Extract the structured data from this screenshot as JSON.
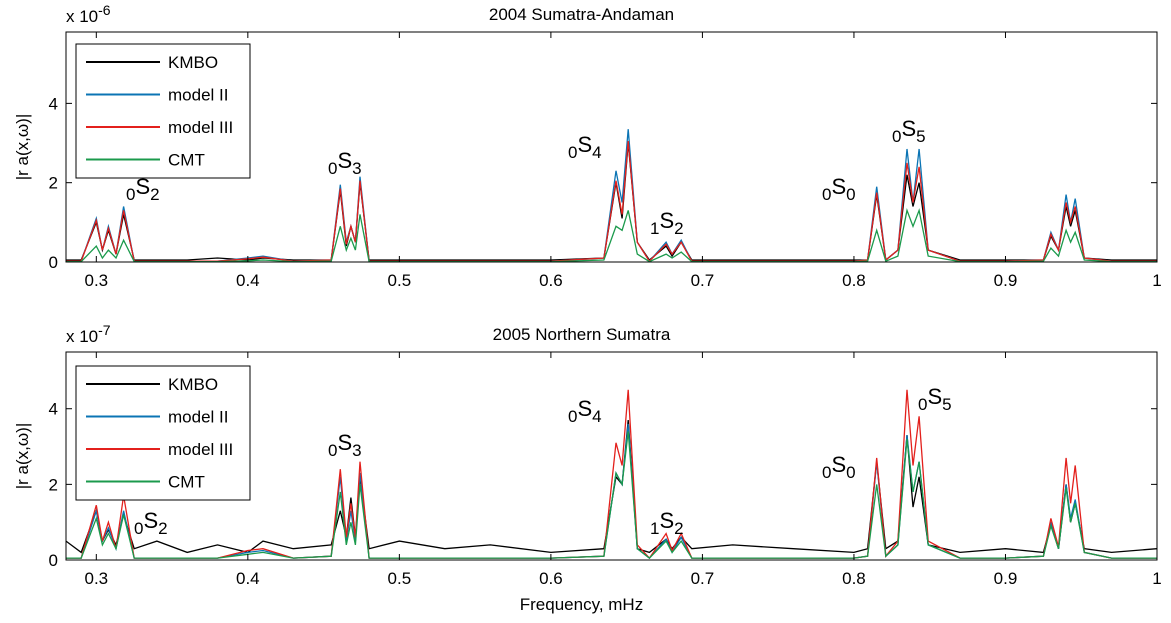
{
  "charts": [
    {
      "type": "line",
      "title": "2004 Sumatra-Andaman",
      "ylabel": "|r   a(x,ω)|",
      "scale_base": "x 10",
      "scale_exponent": "-6",
      "xlim": [
        0.28,
        1
      ],
      "xticks": [
        0.3,
        0.4,
        0.5,
        0.6,
        0.7,
        0.8,
        0.9,
        1
      ],
      "ylim": [
        0,
        5.8
      ],
      "yticks": [
        0,
        2,
        4
      ],
      "x": [
        0.28,
        0.29,
        0.3,
        0.304,
        0.308,
        0.313,
        0.318,
        0.325,
        0.34,
        0.36,
        0.38,
        0.4,
        0.41,
        0.43,
        0.455,
        0.461,
        0.465,
        0.468,
        0.471,
        0.474,
        0.48,
        0.5,
        0.53,
        0.56,
        0.6,
        0.635,
        0.643,
        0.647,
        0.651,
        0.657,
        0.665,
        0.676,
        0.68,
        0.686,
        0.693,
        0.72,
        0.76,
        0.8,
        0.809,
        0.815,
        0.821,
        0.829,
        0.835,
        0.839,
        0.843,
        0.849,
        0.87,
        0.9,
        0.925,
        0.93,
        0.935,
        0.94,
        0.943,
        0.946,
        0.952,
        0.97,
        1.0
      ],
      "series": [
        {
          "name": "KMBO",
          "color": "#000000",
          "values": [
            0.05,
            0.05,
            1.0,
            0.3,
            0.8,
            0.2,
            1.2,
            0.05,
            0.05,
            0.05,
            0.1,
            0.05,
            0.1,
            0.05,
            0.05,
            1.8,
            0.4,
            0.9,
            0.5,
            2.0,
            0.05,
            0.05,
            0.05,
            0.05,
            0.05,
            0.1,
            2.0,
            1.1,
            3.0,
            0.5,
            0.05,
            0.4,
            0.15,
            0.5,
            0.05,
            0.05,
            0.05,
            0.05,
            0.05,
            1.7,
            0.05,
            0.3,
            2.2,
            1.4,
            2.0,
            0.3,
            0.05,
            0.05,
            0.05,
            0.65,
            0.3,
            1.4,
            0.9,
            1.3,
            0.1,
            0.05,
            0.05
          ]
        },
        {
          "name": "model II",
          "color": "#0b74b4",
          "values": [
            0.02,
            0.02,
            1.1,
            0.3,
            0.9,
            0.2,
            1.4,
            0.02,
            0.02,
            0.02,
            0.02,
            0.1,
            0.15,
            0.02,
            0.05,
            1.95,
            0.5,
            0.9,
            0.5,
            2.15,
            0.02,
            0.02,
            0.02,
            0.02,
            0.02,
            0.1,
            2.3,
            1.5,
            3.35,
            0.5,
            0.02,
            0.5,
            0.2,
            0.55,
            0.02,
            0.02,
            0.02,
            0.02,
            0.05,
            1.9,
            0.05,
            0.3,
            2.85,
            1.5,
            2.85,
            0.3,
            0.02,
            0.02,
            0.05,
            0.75,
            0.3,
            1.7,
            1.0,
            1.6,
            0.1,
            0.02,
            0.02
          ]
        },
        {
          "name": "model III",
          "color": "#e3201c",
          "values": [
            0.02,
            0.02,
            1.05,
            0.3,
            0.85,
            0.2,
            1.3,
            0.02,
            0.02,
            0.02,
            0.02,
            0.08,
            0.12,
            0.02,
            0.05,
            1.85,
            0.45,
            0.9,
            0.5,
            2.05,
            0.02,
            0.02,
            0.02,
            0.02,
            0.02,
            0.1,
            2.05,
            1.2,
            3.05,
            0.5,
            0.02,
            0.45,
            0.2,
            0.5,
            0.02,
            0.02,
            0.02,
            0.02,
            0.05,
            1.75,
            0.05,
            0.3,
            2.5,
            1.5,
            2.4,
            0.3,
            0.02,
            0.02,
            0.05,
            0.7,
            0.3,
            1.5,
            1.0,
            1.4,
            0.1,
            0.02,
            0.02
          ]
        },
        {
          "name": "CMT",
          "color": "#1b9a4c",
          "values": [
            0.01,
            0.01,
            0.4,
            0.1,
            0.3,
            0.1,
            0.55,
            0.01,
            0.01,
            0.01,
            0.01,
            0.03,
            0.05,
            0.01,
            0.02,
            0.9,
            0.3,
            0.6,
            0.3,
            1.2,
            0.01,
            0.01,
            0.01,
            0.01,
            0.01,
            0.05,
            0.9,
            0.8,
            1.3,
            0.2,
            0.01,
            0.2,
            0.1,
            0.25,
            0.01,
            0.01,
            0.01,
            0.01,
            0.02,
            0.8,
            0.02,
            0.15,
            1.3,
            0.9,
            1.3,
            0.15,
            0.01,
            0.01,
            0.02,
            0.35,
            0.15,
            0.8,
            0.5,
            0.75,
            0.05,
            0.01,
            0.01
          ]
        }
      ],
      "annotations": [
        {
          "pre": "0",
          "base": "S",
          "sub": "2"
        },
        {
          "pre": "0",
          "base": "S",
          "sub": "3"
        },
        {
          "pre": "0",
          "base": "S",
          "sub": "4"
        },
        {
          "pre": "1",
          "base": "S",
          "sub": "2"
        },
        {
          "pre": "0",
          "base": "S",
          "sub": "0"
        },
        {
          "pre": "0",
          "base": "S",
          "sub": "5"
        }
      ]
    },
    {
      "type": "line",
      "title": "2005 Northern Sumatra",
      "ylabel": "|r   a(x,ω)|",
      "xlabel": "Frequency, mHz",
      "scale_base": "x 10",
      "scale_exponent": "-7",
      "xlim": [
        0.28,
        1
      ],
      "xticks": [
        0.3,
        0.4,
        0.5,
        0.6,
        0.7,
        0.8,
        0.9,
        1
      ],
      "ylim": [
        0,
        5.5
      ],
      "yticks": [
        0,
        2,
        4
      ],
      "x": [
        0.28,
        0.29,
        0.3,
        0.304,
        0.308,
        0.313,
        0.318,
        0.325,
        0.34,
        0.36,
        0.38,
        0.4,
        0.41,
        0.43,
        0.455,
        0.461,
        0.465,
        0.468,
        0.471,
        0.474,
        0.48,
        0.5,
        0.53,
        0.56,
        0.6,
        0.635,
        0.643,
        0.647,
        0.651,
        0.657,
        0.665,
        0.676,
        0.68,
        0.686,
        0.693,
        0.72,
        0.76,
        0.8,
        0.809,
        0.815,
        0.821,
        0.829,
        0.835,
        0.839,
        0.843,
        0.849,
        0.87,
        0.9,
        0.925,
        0.93,
        0.935,
        0.94,
        0.943,
        0.946,
        0.952,
        0.97,
        1.0
      ],
      "series": [
        {
          "name": "KMBO",
          "color": "#000000",
          "values": [
            0.5,
            0.2,
            1.3,
            0.5,
            0.8,
            0.4,
            1.2,
            0.3,
            0.5,
            0.2,
            0.4,
            0.2,
            0.5,
            0.3,
            0.4,
            1.3,
            0.6,
            1.65,
            0.6,
            2.2,
            0.3,
            0.5,
            0.3,
            0.4,
            0.2,
            0.3,
            2.2,
            2.0,
            3.7,
            0.3,
            0.2,
            0.55,
            0.3,
            0.6,
            0.3,
            0.4,
            0.3,
            0.2,
            0.3,
            2.6,
            0.3,
            0.5,
            3.3,
            1.4,
            2.2,
            0.4,
            0.2,
            0.3,
            0.2,
            0.95,
            0.3,
            2.0,
            1.0,
            1.5,
            0.3,
            0.2,
            0.3
          ]
        },
        {
          "name": "model II",
          "color": "#0b74b4",
          "values": [
            0.05,
            0.05,
            1.3,
            0.5,
            0.85,
            0.3,
            1.3,
            0.05,
            0.05,
            0.05,
            0.05,
            0.2,
            0.25,
            0.05,
            0.1,
            2.2,
            0.5,
            1.3,
            0.5,
            2.3,
            0.05,
            0.05,
            0.05,
            0.05,
            0.05,
            0.1,
            2.3,
            2.0,
            3.6,
            0.3,
            0.05,
            0.55,
            0.2,
            0.6,
            0.05,
            0.05,
            0.05,
            0.05,
            0.1,
            2.6,
            0.1,
            0.4,
            3.3,
            1.8,
            2.6,
            0.4,
            0.05,
            0.05,
            0.1,
            1.0,
            0.3,
            2.0,
            1.1,
            1.6,
            0.2,
            0.05,
            0.05
          ]
        },
        {
          "name": "model III",
          "color": "#e3201c",
          "values": [
            0.05,
            0.05,
            1.45,
            0.5,
            1.0,
            0.3,
            1.7,
            0.05,
            0.05,
            0.05,
            0.05,
            0.25,
            0.3,
            0.05,
            0.1,
            2.4,
            0.6,
            1.5,
            0.6,
            2.6,
            0.05,
            0.05,
            0.05,
            0.05,
            0.05,
            0.1,
            3.1,
            2.5,
            4.5,
            0.4,
            0.05,
            0.7,
            0.25,
            0.7,
            0.05,
            0.05,
            0.05,
            0.05,
            0.1,
            2.7,
            0.1,
            0.5,
            4.5,
            2.5,
            3.8,
            0.5,
            0.05,
            0.05,
            0.1,
            1.1,
            0.35,
            2.7,
            1.5,
            2.5,
            0.2,
            0.05,
            0.05
          ]
        },
        {
          "name": "CMT",
          "color": "#1b9a4c",
          "values": [
            0.05,
            0.05,
            1.1,
            0.4,
            0.7,
            0.3,
            1.2,
            0.05,
            0.05,
            0.05,
            0.05,
            0.15,
            0.2,
            0.05,
            0.1,
            1.8,
            0.4,
            1.0,
            0.4,
            2.0,
            0.05,
            0.05,
            0.05,
            0.05,
            0.05,
            0.1,
            2.3,
            2.0,
            3.4,
            0.3,
            0.05,
            0.5,
            0.2,
            0.5,
            0.05,
            0.05,
            0.05,
            0.05,
            0.1,
            2.0,
            0.1,
            0.4,
            3.2,
            1.8,
            2.6,
            0.4,
            0.05,
            0.05,
            0.1,
            0.9,
            0.3,
            1.9,
            1.0,
            1.5,
            0.2,
            0.05,
            0.05
          ]
        }
      ],
      "annotations": [
        {
          "pre": "0",
          "base": "S",
          "sub": "2"
        },
        {
          "pre": "0",
          "base": "S",
          "sub": "3"
        },
        {
          "pre": "0",
          "base": "S",
          "sub": "4"
        },
        {
          "pre": "1",
          "base": "S",
          "sub": "2"
        },
        {
          "pre": "0",
          "base": "S",
          "sub": "0"
        },
        {
          "pre": "0",
          "base": "S",
          "sub": "5"
        }
      ]
    }
  ]
}
